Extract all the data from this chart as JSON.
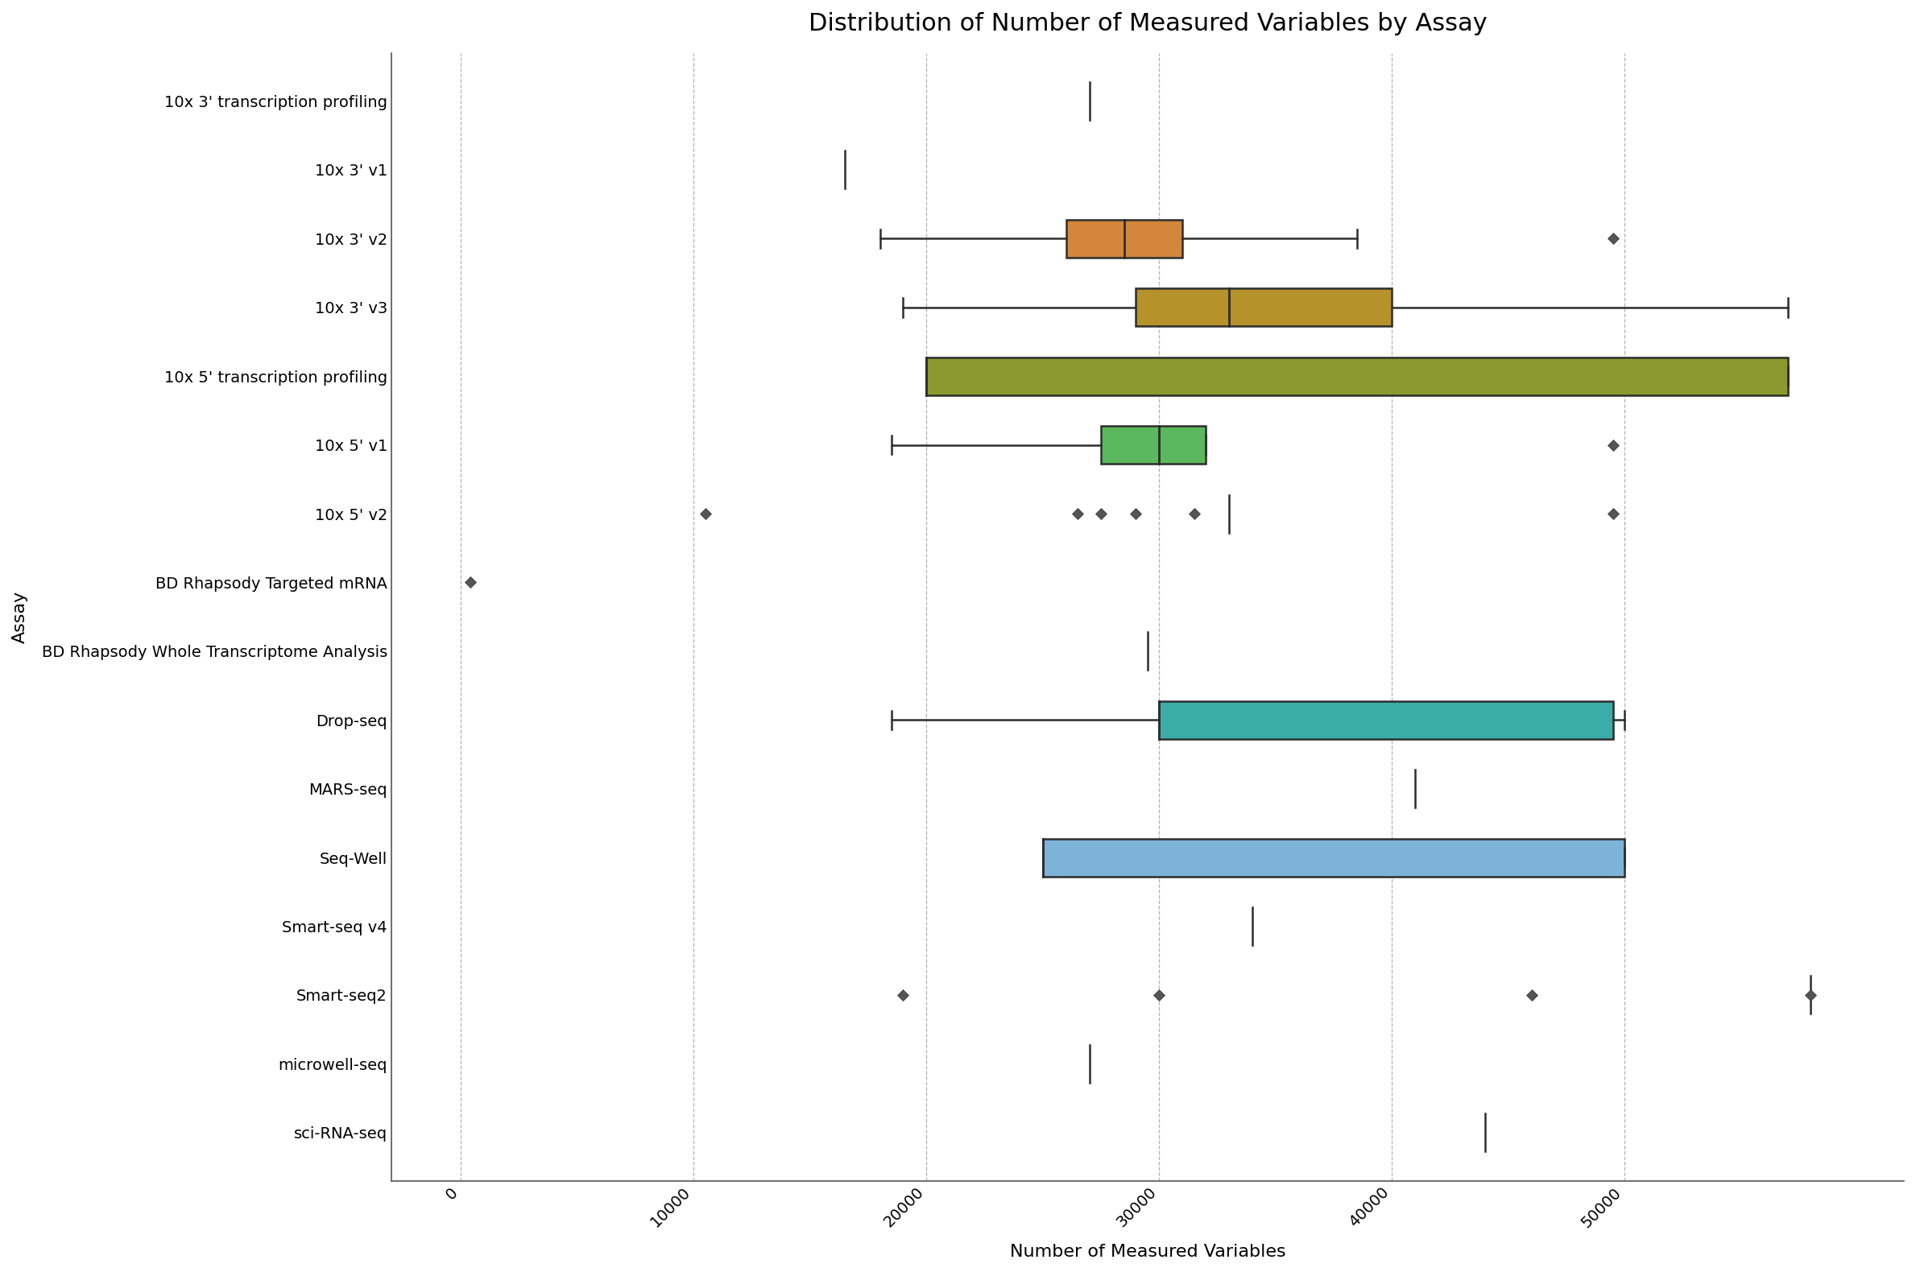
{
  "title": "Distribution of Number of Measured Variables by Assay",
  "xlabel": "Number of Measured Variables",
  "ylabel": "Assay",
  "assays": [
    "10x 3' transcription profiling",
    "10x 3' v1",
    "10x 3' v2",
    "10x 3' v3",
    "10x 5' transcription profiling",
    "10x 5' v1",
    "10x 5' v2",
    "BD Rhapsody Targeted mRNA",
    "BD Rhapsody Whole Transcriptome Analysis",
    "Drop-seq",
    "MARS-seq",
    "Seq-Well",
    "Smart-seq v4",
    "Smart-seq2",
    "microwell-seq",
    "sci-RNA-seq"
  ],
  "box_data": {
    "10x 3' transcription profiling": {
      "whislo": 27000,
      "q1": 27000,
      "med": 27000,
      "q3": 27000,
      "whishi": 27000,
      "fliers": [],
      "has_box": false,
      "single_line": 27000
    },
    "10x 3' v1": {
      "whislo": 16500,
      "q1": 16500,
      "med": 16500,
      "q3": 16500,
      "whishi": 16500,
      "fliers": [],
      "has_box": false,
      "single_line": 16500
    },
    "10x 3' v2": {
      "whislo": 18000,
      "q1": 26000,
      "med": 28500,
      "q3": 31000,
      "whishi": 38500,
      "fliers": [
        49500
      ],
      "has_box": true
    },
    "10x 3' v3": {
      "whislo": 19000,
      "q1": 29000,
      "med": 33000,
      "q3": 40000,
      "whishi": 57000,
      "fliers": [],
      "has_box": true
    },
    "10x 5' transcription profiling": {
      "whislo": 20000,
      "q1": 20000,
      "med": 20000,
      "q3": 57000,
      "whishi": 57000,
      "fliers": [],
      "has_box": true
    },
    "10x 5' v1": {
      "whislo": 18500,
      "q1": 27500,
      "med": 30000,
      "q3": 32000,
      "whishi": 32000,
      "fliers": [
        49500
      ],
      "has_box": true
    },
    "10x 5' v2": {
      "whislo": null,
      "q1": null,
      "med": null,
      "q3": null,
      "whishi": null,
      "fliers": [
        10500,
        26500,
        27500,
        29000,
        31500,
        49500
      ],
      "has_box": false,
      "single_line": 33000
    },
    "BD Rhapsody Targeted mRNA": {
      "whislo": null,
      "q1": null,
      "med": null,
      "q3": null,
      "whishi": null,
      "fliers": [
        400
      ],
      "has_box": false
    },
    "BD Rhapsody Whole Transcriptome Analysis": {
      "whislo": 29500,
      "q1": 29500,
      "med": 29500,
      "q3": 29500,
      "whishi": 29500,
      "fliers": [],
      "has_box": false,
      "single_line": 29500
    },
    "Drop-seq": {
      "whislo": 18500,
      "q1": 30000,
      "med": 30000,
      "q3": 49500,
      "whishi": 50000,
      "fliers": [],
      "has_box": true
    },
    "MARS-seq": {
      "whislo": 41000,
      "q1": 41000,
      "med": 41000,
      "q3": 41000,
      "whishi": 41000,
      "fliers": [],
      "has_box": false,
      "single_line": 41000
    },
    "Seq-Well": {
      "whislo": 25000,
      "q1": 25000,
      "med": 25000,
      "q3": 50000,
      "whishi": 50000,
      "fliers": [],
      "has_box": true
    },
    "Smart-seq v4": {
      "whislo": 34000,
      "q1": 34000,
      "med": 34000,
      "q3": 34000,
      "whishi": 34000,
      "fliers": [],
      "has_box": false,
      "single_line": 34000
    },
    "Smart-seq2": {
      "whislo": null,
      "q1": null,
      "med": null,
      "q3": null,
      "whishi": null,
      "fliers": [
        19000,
        30000,
        46000,
        58000
      ],
      "has_box": false,
      "single_line": 58000
    },
    "microwell-seq": {
      "whislo": 27000,
      "q1": 27000,
      "med": 27000,
      "q3": 27000,
      "whishi": 27000,
      "fliers": [],
      "has_box": false,
      "single_line": 27000
    },
    "sci-RNA-seq": {
      "whislo": 44000,
      "q1": 44000,
      "med": 44000,
      "q3": 44000,
      "whishi": 44000,
      "fliers": [],
      "has_box": false,
      "single_line": 44000
    }
  },
  "colors": {
    "10x 3' transcription profiling": "#555555",
    "10x 3' v1": "#555555",
    "10x 3' v2": "#D4873C",
    "10x 3' v3": "#B5922A",
    "10x 5' transcription profiling": "#8B9A2E",
    "10x 5' v1": "#5CB85C",
    "10x 5' v2": "#555555",
    "BD Rhapsody Targeted mRNA": "#555555",
    "BD Rhapsody Whole Transcriptome Analysis": "#555555",
    "Drop-seq": "#3AADA8",
    "MARS-seq": "#555555",
    "Seq-Well": "#7EB3D8",
    "Smart-seq v4": "#555555",
    "Smart-seq2": "#555555",
    "microwell-seq": "#555555",
    "sci-RNA-seq": "#555555"
  },
  "background_color": "#FFFFFF",
  "xlim": [
    -3000,
    62000
  ],
  "xticks": [
    0,
    10000,
    20000,
    30000,
    40000,
    50000
  ],
  "xticklabels": [
    "0",
    "10000",
    "20000",
    "30000",
    "40000",
    "50000"
  ],
  "title_fontsize": 22,
  "label_fontsize": 16,
  "tick_fontsize": 14
}
